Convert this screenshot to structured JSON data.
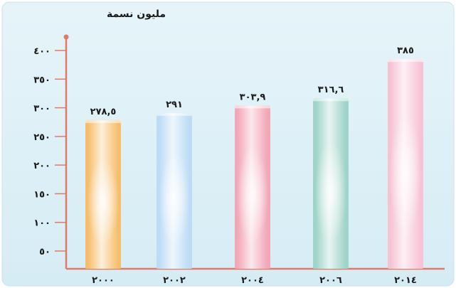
{
  "chart_data": {
    "type": "bar",
    "title": "",
    "ylabel": "مليون نسمة",
    "xlabel": "",
    "categories": [
      "٢٠٠٠",
      "٢٠٠٢",
      "٢٠٠٤",
      "٢٠٠٦",
      "٢٠١٤"
    ],
    "values": [
      278.5,
      291,
      303.9,
      316.6,
      385
    ],
    "value_labels": [
      "٢٧٨,٥",
      "٢٩١",
      "٣٠٣,٩",
      "٣١٦,٦",
      "٣٨٥"
    ],
    "yticks": [
      50,
      100,
      150,
      200,
      250,
      300,
      350,
      400
    ],
    "ytick_labels": [
      "٥٠",
      "١٠٠",
      "١٥٠",
      "٢٠٠",
      "٢٥٠",
      "٣٠٠",
      "٣٥٠",
      "٤٠٠"
    ],
    "ylim": [
      0,
      400
    ],
    "grid": false,
    "legend": "none",
    "bar_colors": [
      "#f6be6c",
      "#bcdcf5",
      "#f2a7b6",
      "#9fd4c9",
      "#f7c3d4"
    ],
    "background_color": "#d9eef6",
    "axis_color": "#e07a68"
  }
}
